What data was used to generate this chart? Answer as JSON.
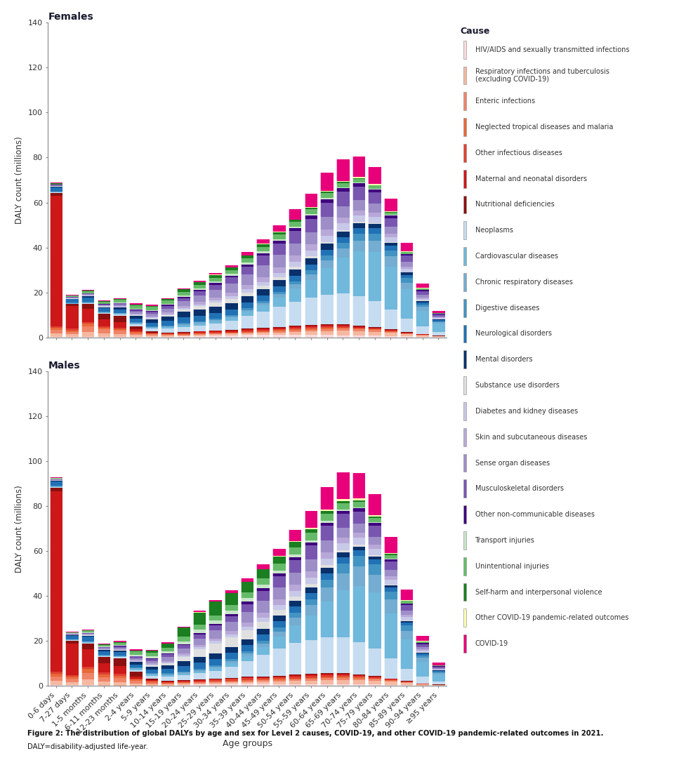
{
  "age_groups": [
    "0-6 days",
    "7-27 days",
    "1-5 months",
    "6-11 months",
    "12-23 months",
    "2-4 years",
    "5-9 years",
    "10-14 years",
    "15-19 years",
    "20-24 years",
    "25-29 years",
    "30-34 years",
    "35-39 years",
    "40-44 years",
    "45-49 years",
    "50-54 years",
    "55-59 years",
    "60-64 years",
    "65-69 years",
    "70-74 years",
    "75-79 years",
    "80-84 years",
    "85-89 years",
    "90-94 years",
    "≥95 years"
  ],
  "causes": [
    "HIV/AIDS and sexually transmitted infections",
    "Respiratory infections and tuberculosis\n(excluding COVID-19)",
    "Enteric infections",
    "Neglected tropical diseases and malaria",
    "Other infectious diseases",
    "Maternal and neonatal disorders",
    "Nutritional deficiencies",
    "Neoplasms",
    "Cardiovascular diseases",
    "Chronic respiratory diseases",
    "Digestive diseases",
    "Neurological disorders",
    "Mental disorders",
    "Substance use disorders",
    "Diabetes and kidney diseases",
    "Skin and subcutaneous diseases",
    "Sense organ diseases",
    "Musculoskeletal disorders",
    "Other non-communicable diseases",
    "Transport injuries",
    "Unintentional injuries",
    "Self-harm and interpersonal violence",
    "Other COVID-19 pandemic-related outcomes",
    "COVID-19"
  ],
  "colors": [
    "#FADADD",
    "#F5B8A0",
    "#F08468",
    "#E8693A",
    "#E04030",
    "#CC1818",
    "#8B1010",
    "#C6DCF0",
    "#70B8DC",
    "#74ADD1",
    "#4393C3",
    "#2171B5",
    "#08306B",
    "#E0E0E0",
    "#C8C8E8",
    "#B8A8D8",
    "#9E8EC8",
    "#7856B0",
    "#3F007D",
    "#C8E6C9",
    "#66BB6A",
    "#1B7E20",
    "#FFFFB2",
    "#E8007A"
  ],
  "females": [
    [
      0.3,
      0.3,
      0.3,
      0.2,
      0.2,
      0.2,
      0.2,
      0.2,
      0.4,
      0.6,
      0.8,
      0.9,
      1.0,
      1.0,
      1.0,
      1.0,
      1.0,
      1.0,
      0.9,
      0.8,
      0.7,
      0.5,
      0.4,
      0.2,
      0.1
    ],
    [
      1.5,
      1.0,
      2.0,
      1.5,
      1.2,
      0.8,
      0.6,
      0.5,
      0.5,
      0.6,
      0.6,
      0.7,
      0.8,
      1.0,
      1.2,
      1.4,
      1.6,
      1.8,
      2.0,
      2.0,
      1.8,
      1.5,
      1.0,
      0.6,
      0.3
    ],
    [
      1.5,
      1.2,
      2.5,
      1.8,
      1.5,
      0.8,
      0.5,
      0.4,
      0.3,
      0.3,
      0.3,
      0.3,
      0.4,
      0.5,
      0.6,
      0.7,
      0.8,
      0.9,
      0.9,
      0.8,
      0.7,
      0.5,
      0.3,
      0.2,
      0.1
    ],
    [
      0.8,
      0.6,
      1.2,
      0.8,
      0.7,
      0.5,
      0.3,
      0.2,
      0.2,
      0.2,
      0.2,
      0.2,
      0.3,
      0.3,
      0.4,
      0.4,
      0.5,
      0.5,
      0.5,
      0.4,
      0.3,
      0.2,
      0.1,
      0.1,
      0.0
    ],
    [
      0.8,
      0.7,
      0.8,
      0.7,
      0.6,
      0.4,
      0.3,
      0.3,
      0.3,
      0.4,
      0.4,
      0.4,
      0.5,
      0.5,
      0.5,
      0.6,
      0.6,
      0.6,
      0.5,
      0.4,
      0.3,
      0.2,
      0.1,
      0.1,
      0.0
    ],
    [
      58.0,
      10.0,
      6.0,
      3.0,
      2.5,
      0.8,
      0.3,
      0.2,
      0.5,
      0.5,
      0.6,
      0.6,
      0.7,
      0.7,
      0.7,
      0.7,
      0.7,
      0.7,
      0.7,
      0.6,
      0.5,
      0.4,
      0.2,
      0.1,
      0.1
    ],
    [
      1.2,
      1.0,
      2.0,
      2.5,
      3.0,
      1.5,
      0.5,
      0.3,
      0.2,
      0.2,
      0.2,
      0.3,
      0.3,
      0.3,
      0.3,
      0.4,
      0.4,
      0.4,
      0.4,
      0.3,
      0.3,
      0.2,
      0.2,
      0.1,
      0.1
    ],
    [
      0.3,
      0.2,
      0.3,
      0.3,
      0.5,
      0.8,
      1.2,
      1.8,
      2.2,
      2.5,
      3.0,
      4.0,
      5.5,
      7.0,
      9.0,
      10.5,
      12.0,
      13.0,
      13.5,
      13.0,
      11.5,
      9.0,
      6.0,
      3.5,
      1.8
    ],
    [
      0.2,
      0.2,
      0.2,
      0.2,
      0.3,
      0.4,
      0.5,
      0.6,
      0.7,
      0.8,
      1.0,
      1.2,
      1.8,
      2.8,
      4.0,
      6.0,
      8.0,
      12.0,
      16.0,
      20.0,
      22.0,
      19.0,
      13.0,
      7.0,
      3.5
    ],
    [
      0.1,
      0.1,
      0.2,
      0.2,
      0.2,
      0.3,
      0.3,
      0.4,
      0.5,
      0.5,
      0.6,
      0.7,
      0.9,
      1.1,
      1.4,
      1.8,
      2.5,
      3.2,
      4.0,
      4.8,
      5.0,
      4.5,
      3.0,
      1.6,
      0.7
    ],
    [
      0.1,
      0.1,
      0.2,
      0.2,
      0.2,
      0.3,
      0.3,
      0.4,
      0.5,
      0.5,
      0.6,
      0.7,
      0.8,
      1.0,
      1.2,
      1.5,
      1.8,
      2.3,
      2.7,
      3.0,
      3.0,
      2.7,
      2.0,
      1.1,
      0.5
    ],
    [
      2.0,
      1.5,
      2.0,
      1.5,
      1.5,
      1.5,
      1.5,
      2.0,
      2.5,
      2.5,
      2.5,
      2.5,
      2.5,
      2.5,
      2.5,
      2.5,
      2.5,
      2.5,
      2.5,
      2.5,
      2.5,
      2.0,
      1.5,
      1.0,
      0.5
    ],
    [
      0.3,
      0.3,
      0.5,
      0.5,
      0.8,
      1.2,
      1.5,
      2.0,
      2.5,
      2.8,
      2.8,
      2.8,
      2.8,
      2.8,
      2.8,
      2.8,
      2.8,
      2.8,
      2.5,
      2.2,
      1.8,
      1.4,
      1.0,
      0.6,
      0.3
    ],
    [
      0.1,
      0.1,
      0.2,
      0.2,
      0.2,
      0.3,
      0.4,
      0.5,
      1.0,
      1.5,
      1.8,
      1.8,
      1.6,
      1.4,
      1.2,
      1.0,
      0.8,
      0.7,
      0.6,
      0.5,
      0.4,
      0.3,
      0.2,
      0.1,
      0.1
    ],
    [
      0.1,
      0.1,
      0.2,
      0.2,
      0.3,
      0.4,
      0.4,
      0.5,
      0.6,
      0.8,
      1.0,
      1.2,
      1.4,
      1.6,
      1.9,
      2.2,
      2.5,
      2.8,
      3.0,
      3.0,
      2.8,
      2.2,
      1.5,
      0.8,
      0.4
    ],
    [
      0.1,
      0.1,
      0.2,
      0.2,
      0.3,
      0.4,
      0.5,
      0.7,
      0.9,
      1.1,
      1.3,
      1.5,
      1.9,
      2.2,
      2.5,
      2.8,
      2.8,
      2.8,
      2.5,
      2.2,
      1.9,
      1.5,
      1.0,
      0.6,
      0.3
    ],
    [
      0.2,
      0.2,
      0.3,
      0.4,
      0.6,
      0.8,
      1.2,
      1.8,
      2.2,
      2.8,
      3.5,
      4.0,
      4.8,
      5.2,
      5.5,
      5.5,
      5.5,
      5.5,
      5.0,
      4.5,
      4.0,
      3.0,
      2.0,
      1.2,
      0.6
    ],
    [
      0.2,
      0.2,
      0.3,
      0.3,
      0.5,
      0.8,
      0.9,
      1.2,
      1.5,
      1.8,
      2.2,
      2.8,
      3.5,
      4.5,
      5.0,
      5.5,
      6.0,
      6.5,
      6.5,
      6.0,
      5.0,
      4.0,
      2.8,
      1.6,
      0.8
    ],
    [
      0.1,
      0.1,
      0.1,
      0.1,
      0.2,
      0.2,
      0.3,
      0.4,
      0.5,
      0.6,
      0.7,
      0.8,
      1.0,
      1.1,
      1.2,
      1.3,
      1.4,
      1.5,
      1.6,
      1.5,
      1.3,
      1.1,
      0.8,
      0.5,
      0.2
    ],
    [
      0.1,
      0.1,
      0.2,
      0.2,
      0.3,
      0.4,
      0.5,
      0.6,
      0.7,
      0.8,
      0.8,
      0.8,
      0.8,
      0.8,
      0.7,
      0.7,
      0.6,
      0.5,
      0.4,
      0.3,
      0.3,
      0.2,
      0.1,
      0.1,
      0.1
    ],
    [
      0.4,
      0.4,
      0.8,
      0.8,
      1.2,
      1.5,
      1.3,
      1.3,
      1.6,
      1.6,
      1.6,
      1.6,
      1.8,
      2.0,
      2.2,
      2.2,
      2.2,
      2.2,
      2.0,
      1.8,
      1.5,
      1.2,
      0.8,
      0.5,
      0.2
    ],
    [
      0.1,
      0.1,
      0.2,
      0.2,
      0.3,
      0.4,
      0.5,
      0.7,
      1.0,
      1.2,
      1.3,
      1.3,
      1.2,
      1.1,
      0.9,
      0.7,
      0.6,
      0.5,
      0.4,
      0.3,
      0.2,
      0.2,
      0.1,
      0.1,
      0.0
    ],
    [
      0.0,
      0.0,
      0.0,
      0.0,
      0.0,
      0.0,
      0.0,
      0.0,
      0.0,
      0.1,
      0.1,
      0.1,
      0.1,
      0.2,
      0.2,
      0.3,
      0.4,
      0.5,
      0.5,
      0.5,
      0.5,
      0.4,
      0.3,
      0.2,
      0.1
    ],
    [
      0.3,
      0.3,
      0.3,
      0.3,
      0.4,
      0.5,
      0.5,
      0.5,
      0.5,
      0.6,
      0.7,
      1.0,
      1.5,
      2.0,
      3.0,
      4.5,
      6.0,
      8.0,
      9.5,
      9.0,
      7.5,
      5.5,
      3.5,
      2.0,
      1.0
    ]
  ],
  "males": [
    [
      0.3,
      0.3,
      0.3,
      0.2,
      0.2,
      0.2,
      0.2,
      0.2,
      0.5,
      0.7,
      0.9,
      1.0,
      1.0,
      1.0,
      0.9,
      0.9,
      0.8,
      0.8,
      0.7,
      0.6,
      0.6,
      0.4,
      0.3,
      0.2,
      0.1
    ],
    [
      2.0,
      1.5,
      2.5,
      1.8,
      1.5,
      1.0,
      0.7,
      0.5,
      0.5,
      0.5,
      0.6,
      0.7,
      0.8,
      1.0,
      1.2,
      1.4,
      1.6,
      1.8,
      2.0,
      2.0,
      1.8,
      1.5,
      1.0,
      0.5,
      0.3
    ],
    [
      2.0,
      1.5,
      3.0,
      2.0,
      1.8,
      1.0,
      0.6,
      0.4,
      0.4,
      0.4,
      0.4,
      0.4,
      0.5,
      0.5,
      0.6,
      0.7,
      0.8,
      0.9,
      0.9,
      0.8,
      0.7,
      0.5,
      0.3,
      0.1,
      0.1
    ],
    [
      1.2,
      0.8,
      1.8,
      1.2,
      1.0,
      0.6,
      0.4,
      0.3,
      0.2,
      0.2,
      0.2,
      0.2,
      0.3,
      0.3,
      0.4,
      0.4,
      0.5,
      0.5,
      0.5,
      0.4,
      0.3,
      0.2,
      0.1,
      0.1,
      0.0
    ],
    [
      1.0,
      0.8,
      0.9,
      0.8,
      0.8,
      0.5,
      0.4,
      0.4,
      0.5,
      0.6,
      0.7,
      0.8,
      0.9,
      0.9,
      0.9,
      0.9,
      0.9,
      0.9,
      0.8,
      0.7,
      0.6,
      0.4,
      0.2,
      0.1,
      0.0
    ],
    [
      80.0,
      14.0,
      8.0,
      4.0,
      3.5,
      1.0,
      0.4,
      0.2,
      0.2,
      0.2,
      0.2,
      0.3,
      0.3,
      0.3,
      0.3,
      0.4,
      0.4,
      0.4,
      0.4,
      0.3,
      0.3,
      0.2,
      0.1,
      0.1,
      0.0
    ],
    [
      1.8,
      1.2,
      2.5,
      3.0,
      3.5,
      2.0,
      0.7,
      0.4,
      0.3,
      0.2,
      0.2,
      0.3,
      0.3,
      0.3,
      0.3,
      0.4,
      0.4,
      0.4,
      0.4,
      0.3,
      0.3,
      0.2,
      0.2,
      0.1,
      0.1
    ],
    [
      0.3,
      0.2,
      0.3,
      0.3,
      0.5,
      0.8,
      1.2,
      1.8,
      2.2,
      2.8,
      3.5,
      5.0,
      7.0,
      9.5,
      12.0,
      14.0,
      15.0,
      16.0,
      16.0,
      14.5,
      12.0,
      9.0,
      5.5,
      3.0,
      1.5
    ],
    [
      0.2,
      0.2,
      0.2,
      0.2,
      0.3,
      0.4,
      0.5,
      0.6,
      0.7,
      0.9,
      1.1,
      1.5,
      2.2,
      3.5,
      5.5,
      8.0,
      11.0,
      16.0,
      21.0,
      25.0,
      25.0,
      20.0,
      13.0,
      6.5,
      3.0
    ],
    [
      0.1,
      0.1,
      0.2,
      0.2,
      0.2,
      0.3,
      0.4,
      0.4,
      0.5,
      0.6,
      0.7,
      0.9,
      1.2,
      1.6,
      2.2,
      3.2,
      4.5,
      6.0,
      7.5,
      8.5,
      8.0,
      6.0,
      3.8,
      1.8,
      0.8
    ],
    [
      0.1,
      0.1,
      0.2,
      0.2,
      0.2,
      0.3,
      0.4,
      0.4,
      0.5,
      0.6,
      0.7,
      0.8,
      1.0,
      1.3,
      1.7,
      2.2,
      2.8,
      3.5,
      4.2,
      4.7,
      4.5,
      3.5,
      2.4,
      1.2,
      0.5
    ],
    [
      2.0,
      1.5,
      2.0,
      1.5,
      1.5,
      1.5,
      1.5,
      2.0,
      2.5,
      2.8,
      2.8,
      2.8,
      2.8,
      2.8,
      2.8,
      2.8,
      2.8,
      2.8,
      2.8,
      2.5,
      2.2,
      1.8,
      1.2,
      0.7,
      0.3
    ],
    [
      0.3,
      0.3,
      0.5,
      0.5,
      0.7,
      1.0,
      1.2,
      1.5,
      2.0,
      2.5,
      2.5,
      2.5,
      2.5,
      2.5,
      2.5,
      2.5,
      2.5,
      2.5,
      2.2,
      1.8,
      1.4,
      1.0,
      0.7,
      0.4,
      0.2
    ],
    [
      0.1,
      0.1,
      0.2,
      0.2,
      0.2,
      0.3,
      0.5,
      0.9,
      2.0,
      3.5,
      4.5,
      4.5,
      4.0,
      3.2,
      2.5,
      2.0,
      1.5,
      1.2,
      0.9,
      0.7,
      0.5,
      0.4,
      0.3,
      0.2,
      0.1
    ],
    [
      0.1,
      0.1,
      0.2,
      0.2,
      0.3,
      0.3,
      0.4,
      0.5,
      0.6,
      0.8,
      1.0,
      1.2,
      1.5,
      1.8,
      2.1,
      2.4,
      2.7,
      3.0,
      3.2,
      3.2,
      2.9,
      2.3,
      1.5,
      0.8,
      0.3
    ],
    [
      0.1,
      0.1,
      0.2,
      0.2,
      0.3,
      0.4,
      0.5,
      0.6,
      0.8,
      1.0,
      1.2,
      1.5,
      1.9,
      2.2,
      2.5,
      2.8,
      2.8,
      2.8,
      2.5,
      2.2,
      1.9,
      1.5,
      1.0,
      0.5,
      0.2
    ],
    [
      0.2,
      0.2,
      0.3,
      0.4,
      0.6,
      0.8,
      1.2,
      1.8,
      2.2,
      2.8,
      3.5,
      4.0,
      4.8,
      5.2,
      5.5,
      5.5,
      5.5,
      5.2,
      4.5,
      4.0,
      3.5,
      2.8,
      1.8,
      1.0,
      0.5
    ],
    [
      0.2,
      0.2,
      0.3,
      0.3,
      0.5,
      0.8,
      0.9,
      1.2,
      1.5,
      1.8,
      2.2,
      2.8,
      3.5,
      4.5,
      5.0,
      5.5,
      6.0,
      6.5,
      6.0,
      5.5,
      4.8,
      3.8,
      2.5,
      1.4,
      0.7
    ],
    [
      0.1,
      0.1,
      0.1,
      0.1,
      0.2,
      0.2,
      0.3,
      0.4,
      0.5,
      0.6,
      0.7,
      0.8,
      1.0,
      1.1,
      1.2,
      1.3,
      1.4,
      1.5,
      1.5,
      1.4,
      1.2,
      1.0,
      0.7,
      0.4,
      0.2
    ],
    [
      0.1,
      0.1,
      0.2,
      0.2,
      0.3,
      0.4,
      0.7,
      1.0,
      1.3,
      1.5,
      1.7,
      1.7,
      1.6,
      1.6,
      1.4,
      1.2,
      1.0,
      0.8,
      0.6,
      0.5,
      0.4,
      0.3,
      0.2,
      0.1,
      0.0
    ],
    [
      0.4,
      0.4,
      0.8,
      0.8,
      1.2,
      1.5,
      1.6,
      1.6,
      2.0,
      2.2,
      2.2,
      2.2,
      2.5,
      2.8,
      3.0,
      3.2,
      3.2,
      3.0,
      2.8,
      2.4,
      2.0,
      1.5,
      1.0,
      0.6,
      0.3
    ],
    [
      0.1,
      0.1,
      0.2,
      0.2,
      0.3,
      0.5,
      0.9,
      1.8,
      4.0,
      5.5,
      6.0,
      5.5,
      4.8,
      4.0,
      3.2,
      2.5,
      1.8,
      1.4,
      1.0,
      0.7,
      0.5,
      0.4,
      0.2,
      0.1,
      0.0
    ],
    [
      0.0,
      0.0,
      0.0,
      0.0,
      0.0,
      0.0,
      0.0,
      0.0,
      0.0,
      0.1,
      0.1,
      0.1,
      0.1,
      0.2,
      0.2,
      0.3,
      0.4,
      0.6,
      0.7,
      0.7,
      0.6,
      0.5,
      0.3,
      0.2,
      0.1
    ],
    [
      0.3,
      0.3,
      0.3,
      0.3,
      0.4,
      0.5,
      0.5,
      0.5,
      0.5,
      0.6,
      0.7,
      1.0,
      1.5,
      2.0,
      3.2,
      5.0,
      7.5,
      10.0,
      12.0,
      11.5,
      9.5,
      7.0,
      4.5,
      2.2,
      1.0
    ]
  ],
  "title_female": "Females",
  "title_male": "Males",
  "ylabel": "DALY count (millions)",
  "xlabel": "Age groups",
  "ylim": [
    0,
    140
  ],
  "yticks": [
    0,
    20,
    40,
    60,
    80,
    100,
    120,
    140
  ],
  "figure_caption_bold": "Figure 2: The distribution of global DALYs by age and sex for Level 2 causes, COVID-19, and other COVID-19 pandemic-related outcomes in 2021.",
  "figure_caption_normal": "DALY=disability-adjusted life-year.",
  "legend_title": "Cause"
}
